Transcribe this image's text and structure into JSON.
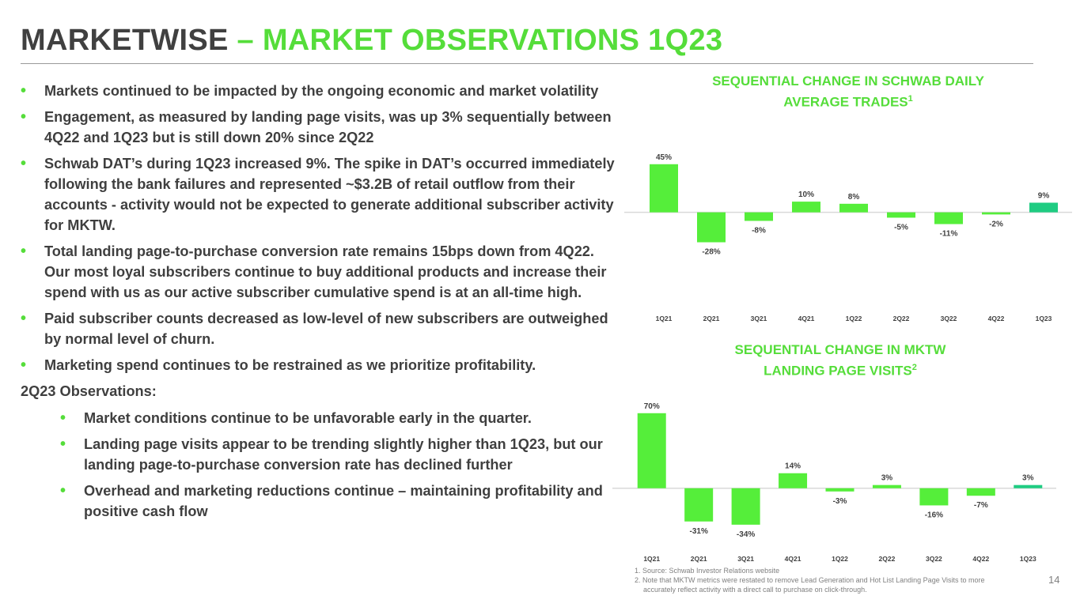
{
  "title": {
    "main": "MARKETWISE",
    "dash": " – ",
    "accent": "MARKET OBSERVATIONS 1Q23"
  },
  "bullets": [
    "Markets continued to be impacted by the ongoing economic and market volatility",
    "Engagement, as measured by landing page visits, was up 3% sequentially between 4Q22 and 1Q23 but is still down 20% since 2Q22",
    "Schwab DAT’s during 1Q23 increased 9%.  The spike in DAT’s occurred immediately following the bank failures and represented ~$3.2B of retail outflow from their accounts - activity would not be expected to generate additional subscriber activity for MKTW.",
    "Total landing page-to-purchase conversion rate remains 15bps down from 4Q22. Our most loyal subscribers continue to buy additional products and increase their spend with us as our active subscriber cumulative spend is at an all-time high.",
    "Paid subscriber counts decreased as low-level of new subscribers are outweighed by normal level of churn.",
    "Marketing spend continues to be restrained as we prioritize profitability."
  ],
  "observations": {
    "heading": "2Q23 Observations:",
    "items": [
      "Market conditions continue to be unfavorable early in the quarter.",
      "Landing page visits appear to be trending slightly higher than 1Q23, but our landing page-to-purchase conversion rate has declined further",
      "Overhead and marketing reductions continue – maintaining profitability and positive cash flow"
    ]
  },
  "chart_data": [
    {
      "type": "bar",
      "title": "SEQUENTIAL CHANGE IN SCHWAB DAILY AVERAGE TRADES",
      "title_line1": "SEQUENTIAL CHANGE IN SCHWAB DAILY",
      "title_line2": "AVERAGE TRADES",
      "footnote_ref": "1",
      "categories": [
        "1Q21",
        "2Q21",
        "3Q21",
        "4Q21",
        "1Q22",
        "2Q22",
        "3Q22",
        "4Q22",
        "1Q23"
      ],
      "values": [
        45,
        -28,
        -8,
        10,
        8,
        -5,
        -11,
        -2,
        9
      ],
      "labels": [
        "45%",
        "-28%",
        "-8%",
        "10%",
        "8%",
        "-5%",
        "-11%",
        "-2%",
        "9%"
      ],
      "highlight_index": 8,
      "ylim": [
        -35,
        50
      ]
    },
    {
      "type": "bar",
      "title": "SEQUENTIAL CHANGE IN MKTW LANDING PAGE VISITS",
      "title_line1": "SEQUENTIAL CHANGE IN MKTW",
      "title_line2": "LANDING PAGE VISITS",
      "footnote_ref": "2",
      "categories": [
        "1Q21",
        "2Q21",
        "3Q21",
        "4Q21",
        "1Q22",
        "2Q22",
        "3Q22",
        "4Q22",
        "1Q23"
      ],
      "values": [
        70,
        -31,
        -34,
        14,
        -3,
        3,
        -16,
        -7,
        3
      ],
      "labels": [
        "70%",
        "-31%",
        "-34%",
        "14%",
        "-3%",
        "3%",
        "-16%",
        "-7%",
        "3%"
      ],
      "highlight_index": 8,
      "ylim": [
        -40,
        75
      ]
    }
  ],
  "colors": {
    "accent": "#55dd3a",
    "bar": "#55ee3a",
    "highlight": "#1fcc82",
    "title_dark": "#404040"
  },
  "footnotes": [
    "1. Source:  Schwab Investor Relations website",
    "2. Note that MKTW metrics were restated to remove Lead Generation and Hot List Landing Page Visits to more",
    "accurately reflect activity with a direct call to purchase on click-through."
  ],
  "page_number": "14"
}
